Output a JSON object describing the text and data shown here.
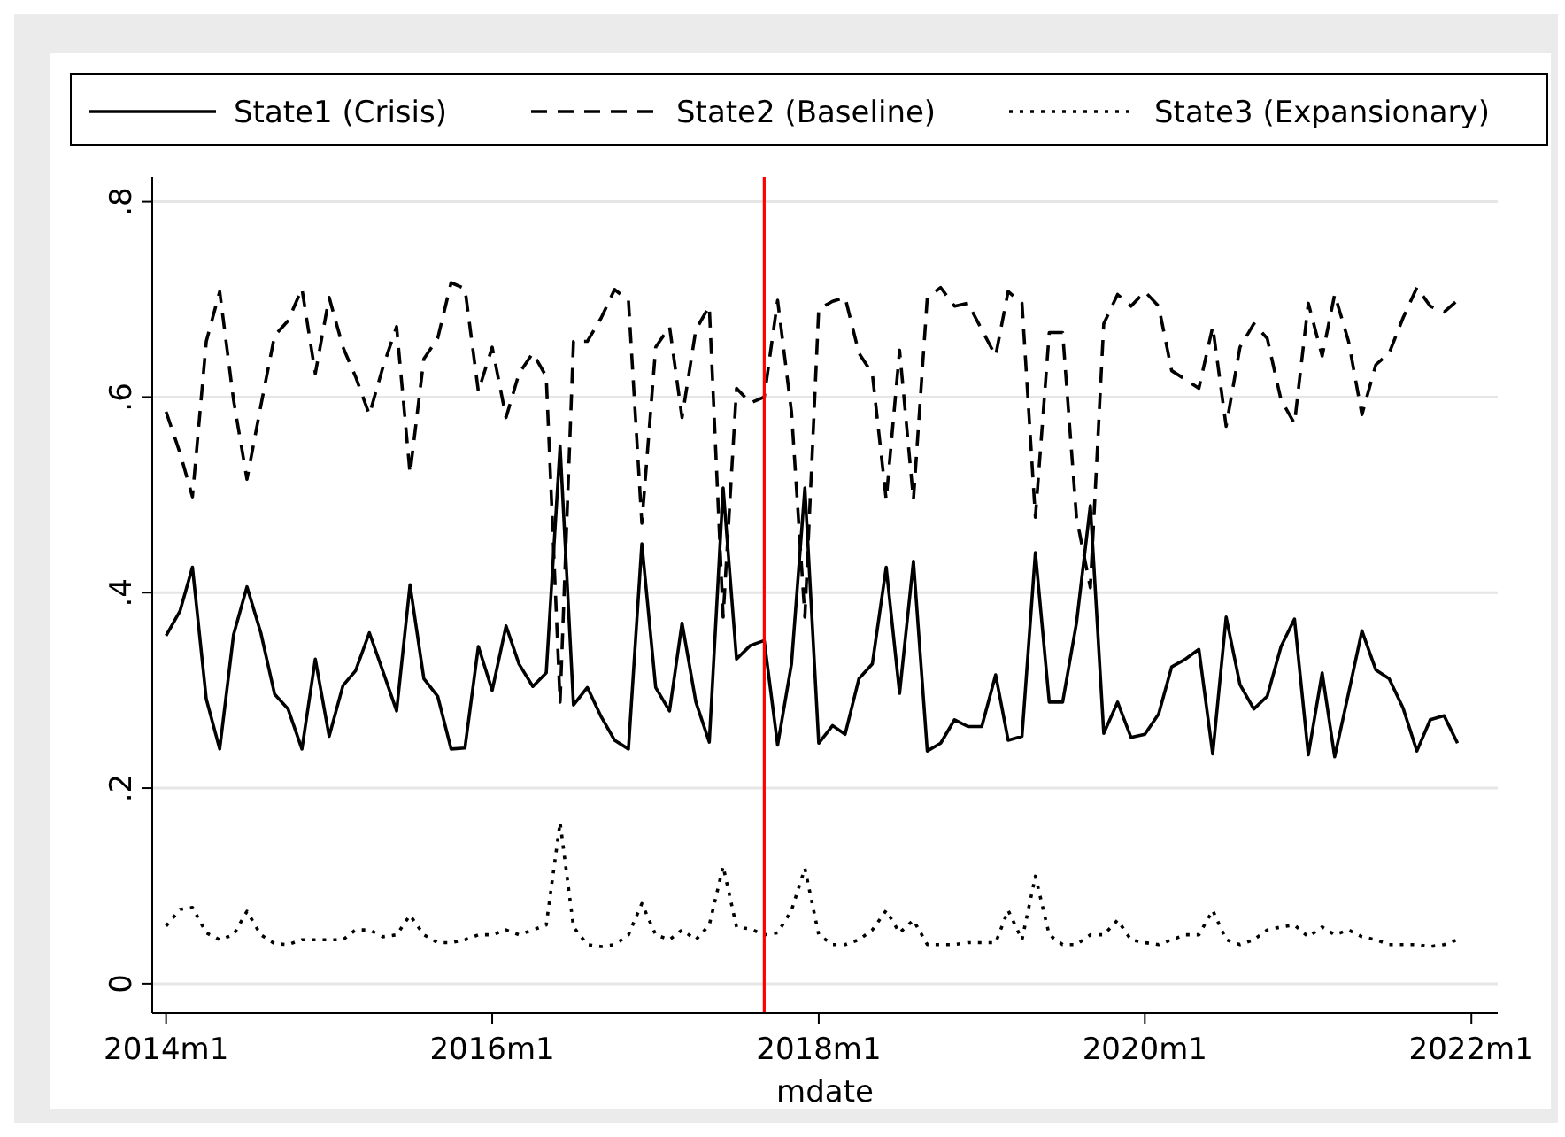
{
  "chart_data": {
    "type": "line",
    "xlabel": "mdate",
    "legend": "top",
    "grid": "y",
    "marker": "none",
    "x": [
      "2014-01",
      "2014-02",
      "2014-03",
      "2014-04",
      "2014-05",
      "2014-06",
      "2014-07",
      "2014-08",
      "2014-09",
      "2014-10",
      "2014-11",
      "2014-12",
      "2015-01",
      "2015-02",
      "2015-03",
      "2015-04",
      "2015-05",
      "2015-06",
      "2015-07",
      "2015-08",
      "2015-09",
      "2015-10",
      "2015-11",
      "2015-12",
      "2016-01",
      "2016-02",
      "2016-03",
      "2016-04",
      "2016-05",
      "2016-06",
      "2016-07",
      "2016-08",
      "2016-09",
      "2016-10",
      "2016-11",
      "2016-12",
      "2017-01",
      "2017-02",
      "2017-03",
      "2017-04",
      "2017-05",
      "2017-06",
      "2017-07",
      "2017-08",
      "2017-09",
      "2017-10",
      "2017-11",
      "2017-12",
      "2018-01",
      "2018-02",
      "2018-03",
      "2018-04",
      "2018-05",
      "2018-06",
      "2018-07",
      "2018-08",
      "2018-09",
      "2018-10",
      "2018-11",
      "2018-12",
      "2019-01",
      "2019-02",
      "2019-03",
      "2019-04",
      "2019-05",
      "2019-06",
      "2019-07",
      "2019-08",
      "2019-09",
      "2019-10",
      "2019-11",
      "2019-12",
      "2020-01",
      "2020-02",
      "2020-03",
      "2020-04",
      "2020-05",
      "2020-06",
      "2020-07",
      "2020-08",
      "2020-09",
      "2020-10",
      "2020-11",
      "2020-12",
      "2021-01",
      "2021-02",
      "2021-03",
      "2021-04",
      "2021-05",
      "2021-06",
      "2021-07",
      "2021-08",
      "2021-09",
      "2021-10",
      "2021-11",
      "2021-12"
    ],
    "xlim": [
      "2013-12",
      "2022-03"
    ],
    "xticks": [
      {
        "value": "2014-01",
        "label": "2014m1"
      },
      {
        "value": "2016-01",
        "label": "2016m1"
      },
      {
        "value": "2018-01",
        "label": "2018m1"
      },
      {
        "value": "2020-01",
        "label": "2020m1"
      },
      {
        "value": "2022-01",
        "label": "2022m1"
      }
    ],
    "ylim": [
      -0.03,
      0.825
    ],
    "yticks": [
      {
        "value": 0,
        "label": "0"
      },
      {
        "value": 0.2,
        "label": ".2"
      },
      {
        "value": 0.4,
        "label": ".4"
      },
      {
        "value": 0.6,
        "label": ".6"
      },
      {
        "value": 0.8,
        "label": ".8"
      }
    ],
    "ref_lines": [
      {
        "axis": "x",
        "value": "2017-09",
        "color": "#ff0000"
      }
    ],
    "series": [
      {
        "name": "State1 (Crisis)",
        "color": "#000000",
        "line_style": "solid",
        "values": [
          0.356,
          0.381,
          0.426,
          0.291,
          0.24,
          0.357,
          0.406,
          0.359,
          0.296,
          0.281,
          0.24,
          0.332,
          0.253,
          0.305,
          0.32,
          0.359,
          0.32,
          0.279,
          0.408,
          0.312,
          0.294,
          0.24,
          0.241,
          0.345,
          0.3,
          0.366,
          0.327,
          0.304,
          0.318,
          0.55,
          0.285,
          0.303,
          0.273,
          0.249,
          0.24,
          0.45,
          0.303,
          0.279,
          0.369,
          0.288,
          0.247,
          0.507,
          0.332,
          0.346,
          0.351,
          0.244,
          0.327,
          0.507,
          0.246,
          0.264,
          0.255,
          0.312,
          0.327,
          0.426,
          0.297,
          0.432,
          0.238,
          0.246,
          0.27,
          0.263,
          0.263,
          0.316,
          0.249,
          0.253,
          0.441,
          0.288,
          0.288,
          0.369,
          0.489,
          0.256,
          0.288,
          0.252,
          0.255,
          0.276,
          0.324,
          0.332,
          0.342,
          0.235,
          0.375,
          0.306,
          0.281,
          0.294,
          0.345,
          0.373,
          0.234,
          0.318,
          0.232,
          0.297,
          0.361,
          0.321,
          0.312,
          0.282,
          0.238,
          0.27,
          0.274,
          0.246
        ]
      },
      {
        "name": "State2 (Baseline)",
        "color": "#000000",
        "line_style": "dashed",
        "values": [
          0.585,
          0.543,
          0.498,
          0.657,
          0.708,
          0.597,
          0.516,
          0.591,
          0.663,
          0.678,
          0.711,
          0.624,
          0.702,
          0.651,
          0.621,
          0.582,
          0.63,
          0.672,
          0.522,
          0.639,
          0.66,
          0.717,
          0.711,
          0.606,
          0.651,
          0.579,
          0.624,
          0.645,
          0.621,
          0.288,
          0.657,
          0.657,
          0.681,
          0.71,
          0.699,
          0.471,
          0.651,
          0.672,
          0.579,
          0.669,
          0.693,
          0.375,
          0.609,
          0.594,
          0.6,
          0.699,
          0.585,
          0.375,
          0.69,
          0.698,
          0.702,
          0.645,
          0.624,
          0.495,
          0.648,
          0.495,
          0.702,
          0.712,
          0.693,
          0.696,
          0.669,
          0.642,
          0.708,
          0.696,
          0.477,
          0.666,
          0.666,
          0.477,
          0.405,
          0.675,
          0.705,
          0.693,
          0.708,
          0.693,
          0.627,
          0.618,
          0.609,
          0.672,
          0.57,
          0.651,
          0.675,
          0.66,
          0.597,
          0.573,
          0.696,
          0.642,
          0.705,
          0.657,
          0.582,
          0.633,
          0.645,
          0.681,
          0.712,
          0.693,
          0.687,
          0.699
        ]
      },
      {
        "name": "State3 (Expansionary)",
        "color": "#000000",
        "line_style": "dotted",
        "values": [
          0.059,
          0.076,
          0.078,
          0.052,
          0.045,
          0.05,
          0.074,
          0.05,
          0.041,
          0.04,
          0.045,
          0.045,
          0.045,
          0.045,
          0.055,
          0.055,
          0.048,
          0.05,
          0.07,
          0.05,
          0.042,
          0.042,
          0.045,
          0.05,
          0.05,
          0.055,
          0.05,
          0.055,
          0.06,
          0.165,
          0.058,
          0.04,
          0.038,
          0.04,
          0.05,
          0.082,
          0.05,
          0.045,
          0.055,
          0.045,
          0.06,
          0.12,
          0.058,
          0.056,
          0.05,
          0.052,
          0.075,
          0.118,
          0.05,
          0.04,
          0.04,
          0.045,
          0.055,
          0.075,
          0.052,
          0.065,
          0.04,
          0.04,
          0.04,
          0.042,
          0.042,
          0.042,
          0.075,
          0.045,
          0.11,
          0.05,
          0.04,
          0.04,
          0.05,
          0.05,
          0.065,
          0.045,
          0.042,
          0.04,
          0.045,
          0.05,
          0.05,
          0.075,
          0.045,
          0.04,
          0.045,
          0.055,
          0.058,
          0.06,
          0.048,
          0.058,
          0.05,
          0.055,
          0.048,
          0.045,
          0.04,
          0.04,
          0.04,
          0.038,
          0.04,
          0.045
        ]
      }
    ]
  }
}
